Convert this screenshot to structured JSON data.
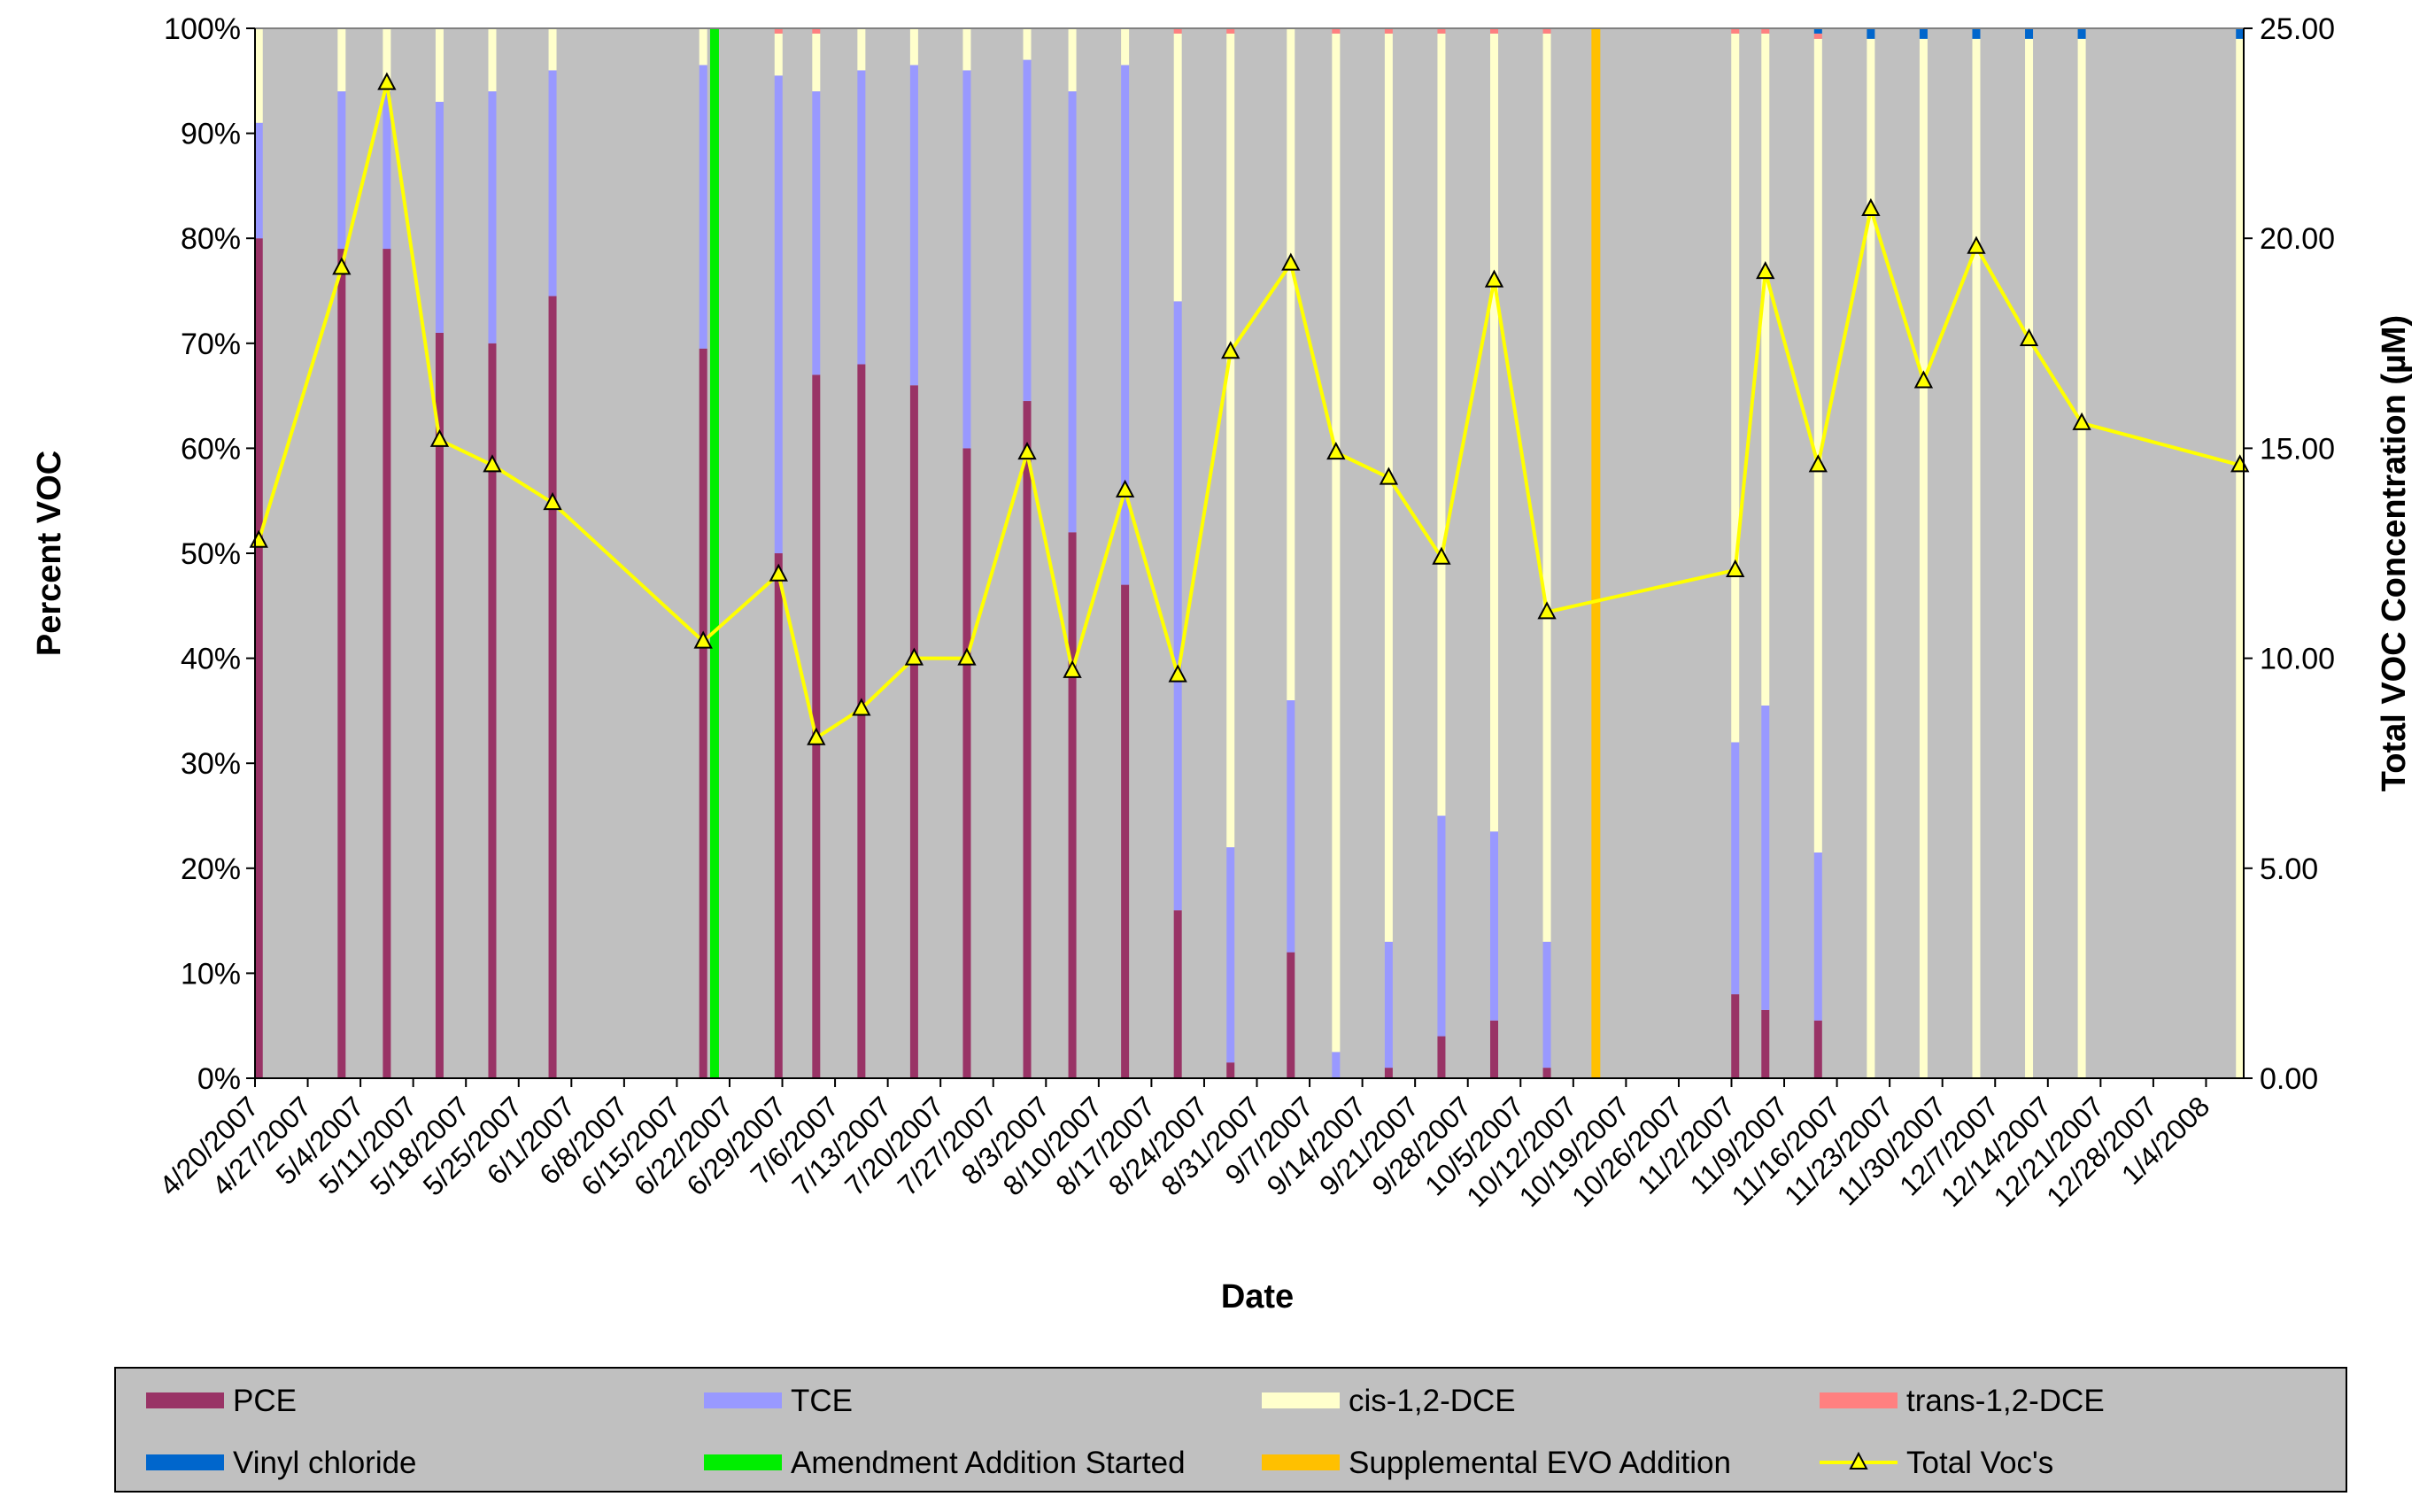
{
  "chart_data": {
    "type": "bar",
    "stacked_percent": true,
    "xlabel": "Date",
    "ylabel": "Percent VOC",
    "y2label": "Total VOC Concentration (µM)",
    "ylim": [
      0,
      100
    ],
    "y2lim": [
      0,
      25
    ],
    "y_ticks": [
      "0%",
      "10%",
      "20%",
      "30%",
      "40%",
      "50%",
      "60%",
      "70%",
      "80%",
      "90%",
      "100%"
    ],
    "y2_ticks": [
      "0.00",
      "5.00",
      "10.00",
      "15.00",
      "20.00",
      "25.00"
    ],
    "x_range_days": [
      0,
      264
    ],
    "x_tick_labels": [
      {
        "day": 0,
        "label": "4/20/2007"
      },
      {
        "day": 7,
        "label": "4/27/2007"
      },
      {
        "day": 14,
        "label": "5/4/2007"
      },
      {
        "day": 21,
        "label": "5/11/2007"
      },
      {
        "day": 28,
        "label": "5/18/2007"
      },
      {
        "day": 35,
        "label": "5/25/2007"
      },
      {
        "day": 42,
        "label": "6/1/2007"
      },
      {
        "day": 49,
        "label": "6/8/2007"
      },
      {
        "day": 56,
        "label": "6/15/2007"
      },
      {
        "day": 63,
        "label": "6/22/2007"
      },
      {
        "day": 70,
        "label": "6/29/2007"
      },
      {
        "day": 77,
        "label": "7/6/2007"
      },
      {
        "day": 84,
        "label": "7/13/2007"
      },
      {
        "day": 91,
        "label": "7/20/2007"
      },
      {
        "day": 98,
        "label": "7/27/2007"
      },
      {
        "day": 105,
        "label": "8/3/2007"
      },
      {
        "day": 112,
        "label": "8/10/2007"
      },
      {
        "day": 119,
        "label": "8/17/2007"
      },
      {
        "day": 126,
        "label": "8/24/2007"
      },
      {
        "day": 133,
        "label": "8/31/2007"
      },
      {
        "day": 140,
        "label": "9/7/2007"
      },
      {
        "day": 147,
        "label": "9/14/2007"
      },
      {
        "day": 154,
        "label": "9/21/2007"
      },
      {
        "day": 161,
        "label": "9/28/2007"
      },
      {
        "day": 168,
        "label": "10/5/2007"
      },
      {
        "day": 175,
        "label": "10/12/2007"
      },
      {
        "day": 182,
        "label": "10/19/2007"
      },
      {
        "day": 189,
        "label": "10/26/2007"
      },
      {
        "day": 196,
        "label": "11/2/2007"
      },
      {
        "day": 203,
        "label": "11/9/2007"
      },
      {
        "day": 210,
        "label": "11/16/2007"
      },
      {
        "day": 217,
        "label": "11/23/2007"
      },
      {
        "day": 224,
        "label": "11/30/2007"
      },
      {
        "day": 231,
        "label": "12/7/2007"
      },
      {
        "day": 238,
        "label": "12/14/2007"
      },
      {
        "day": 245,
        "label": "12/21/2007"
      },
      {
        "day": 252,
        "label": "12/28/2007"
      },
      {
        "day": 259,
        "label": "1/4/2008"
      }
    ],
    "series": [
      {
        "name": "PCE",
        "color": "#993366"
      },
      {
        "name": "TCE",
        "color": "#9999ff"
      },
      {
        "name": "cis-1,2-DCE",
        "color": "#ffffcc"
      },
      {
        "name": "trans-1,2-DCE",
        "color": "#ff8080"
      },
      {
        "name": "Vinyl chloride",
        "color": "#0066cc"
      }
    ],
    "samples": [
      {
        "day": 0.5,
        "PCE": 80,
        "TCE": 11,
        "cis": 9,
        "trans": 0,
        "vc": 0,
        "total": 12.8
      },
      {
        "day": 11.5,
        "PCE": 79,
        "TCE": 15,
        "cis": 6,
        "trans": 0,
        "vc": 0,
        "total": 19.3
      },
      {
        "day": 17.5,
        "PCE": 79,
        "TCE": 15,
        "cis": 6,
        "trans": 0,
        "vc": 0,
        "total": 23.7
      },
      {
        "day": 24.5,
        "PCE": 71,
        "TCE": 22,
        "cis": 7,
        "trans": 0,
        "vc": 0,
        "total": 15.2
      },
      {
        "day": 31.5,
        "PCE": 70,
        "TCE": 24,
        "cis": 6,
        "trans": 0,
        "vc": 0,
        "total": 14.6
      },
      {
        "day": 39.5,
        "PCE": 74.5,
        "TCE": 21.5,
        "cis": 4,
        "trans": 0,
        "vc": 0,
        "total": 13.7
      },
      {
        "day": 59.5,
        "PCE": 69.5,
        "TCE": 27,
        "cis": 3.5,
        "trans": 0,
        "vc": 0,
        "total": 10.4
      },
      {
        "day": 69.5,
        "PCE": 50,
        "TCE": 45.5,
        "cis": 4,
        "trans": 0.5,
        "vc": 0,
        "total": 12.0
      },
      {
        "day": 74.5,
        "PCE": 67,
        "TCE": 27,
        "cis": 5.5,
        "trans": 0.5,
        "vc": 0,
        "total": 8.1
      },
      {
        "day": 80.5,
        "PCE": 68,
        "TCE": 28,
        "cis": 4,
        "trans": 0,
        "vc": 0,
        "total": 8.8
      },
      {
        "day": 87.5,
        "PCE": 66,
        "TCE": 30.5,
        "cis": 3.5,
        "trans": 0,
        "vc": 0,
        "total": 10.0
      },
      {
        "day": 94.5,
        "PCE": 60,
        "TCE": 36,
        "cis": 4,
        "trans": 0,
        "vc": 0,
        "total": 10.0
      },
      {
        "day": 102.5,
        "PCE": 64.5,
        "TCE": 32.5,
        "cis": 3,
        "trans": 0,
        "vc": 0,
        "total": 14.9
      },
      {
        "day": 108.5,
        "PCE": 52,
        "TCE": 42,
        "cis": 6,
        "trans": 0,
        "vc": 0,
        "total": 9.7
      },
      {
        "day": 115.5,
        "PCE": 47,
        "TCE": 49.5,
        "cis": 3.5,
        "trans": 0,
        "vc": 0,
        "total": 14.0
      },
      {
        "day": 122.5,
        "PCE": 16,
        "TCE": 58,
        "cis": 25.5,
        "trans": 0.5,
        "vc": 0,
        "total": 9.6
      },
      {
        "day": 129.5,
        "PCE": 1.5,
        "TCE": 20.5,
        "cis": 77.5,
        "trans": 0.5,
        "vc": 0,
        "total": 17.3
      },
      {
        "day": 137.5,
        "PCE": 12,
        "TCE": 24,
        "cis": 64,
        "trans": 0,
        "vc": 0,
        "total": 19.4
      },
      {
        "day": 143.5,
        "PCE": 0,
        "TCE": 2.5,
        "cis": 97,
        "trans": 0.5,
        "vc": 0,
        "total": 14.9
      },
      {
        "day": 150.5,
        "PCE": 1,
        "TCE": 12,
        "cis": 86.5,
        "trans": 0.5,
        "vc": 0,
        "total": 14.3
      },
      {
        "day": 157.5,
        "PCE": 4,
        "TCE": 21,
        "cis": 74.5,
        "trans": 0.5,
        "vc": 0,
        "total": 12.4
      },
      {
        "day": 164.5,
        "PCE": 5.5,
        "TCE": 18,
        "cis": 76,
        "trans": 0.5,
        "vc": 0,
        "total": 19.0
      },
      {
        "day": 171.5,
        "PCE": 1,
        "TCE": 12,
        "cis": 86.5,
        "trans": 0.5,
        "vc": 0,
        "total": 11.1
      },
      {
        "day": 196.5,
        "PCE": 8,
        "TCE": 24,
        "cis": 67.5,
        "trans": 0.5,
        "vc": 0,
        "total": 12.1
      },
      {
        "day": 200.5,
        "PCE": 6.5,
        "TCE": 29,
        "cis": 64,
        "trans": 0.5,
        "vc": 0,
        "total": 19.2
      },
      {
        "day": 207.5,
        "PCE": 5.5,
        "TCE": 16,
        "cis": 77.5,
        "trans": 0.5,
        "vc": 0.5,
        "total": 14.6
      },
      {
        "day": 214.5,
        "PCE": 0,
        "TCE": 0,
        "cis": 99,
        "trans": 0,
        "vc": 1,
        "total": 20.7
      },
      {
        "day": 221.5,
        "PCE": 0,
        "TCE": 0,
        "cis": 99,
        "trans": 0,
        "vc": 1,
        "total": 16.6
      },
      {
        "day": 228.5,
        "PCE": 0,
        "TCE": 0,
        "cis": 99,
        "trans": 0,
        "vc": 1,
        "total": 19.8
      },
      {
        "day": 235.5,
        "PCE": 0,
        "TCE": 0,
        "cis": 99,
        "trans": 0,
        "vc": 1,
        "total": 17.6
      },
      {
        "day": 242.5,
        "PCE": 0,
        "TCE": 0,
        "cis": 99,
        "trans": 0,
        "vc": 1,
        "total": 15.6
      },
      {
        "day": 263.5,
        "PCE": 0,
        "TCE": 0,
        "cis": 99,
        "trans": 0,
        "vc": 1,
        "total": 14.6
      }
    ],
    "events": [
      {
        "name": "Amendment Addition Started",
        "day": 61,
        "color": "#00ee00"
      },
      {
        "name": "Supplemental EVO Addition",
        "day": 178,
        "color": "#ffc000"
      }
    ],
    "line_series": {
      "name": "Total Voc's",
      "color": "#ffff00",
      "marker": "triangle"
    },
    "legend": {
      "placement": "bottom",
      "entries": [
        "PCE",
        "TCE",
        "cis-1,2-DCE",
        "trans-1,2-DCE",
        "Vinyl chloride",
        "Amendment Addition Started",
        "Supplemental EVO Addition",
        "Total Voc's"
      ]
    }
  }
}
